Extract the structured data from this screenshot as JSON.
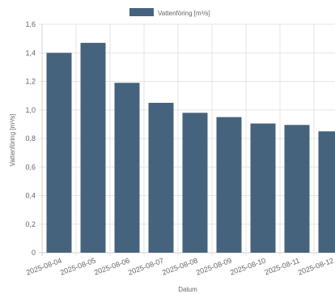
{
  "chart_data": {
    "type": "bar",
    "categories": [
      "2025-08-04",
      "2025-08-05",
      "2025-08-06",
      "2025-08-07",
      "2025-08-08",
      "2025-08-09",
      "2025-08-10",
      "2025-08-11",
      "2025-08-12"
    ],
    "series": [
      {
        "name": "Vattenföring [m³/s]",
        "values": [
          1.4,
          1.47,
          1.19,
          1.05,
          0.98,
          0.95,
          0.905,
          0.895,
          0.85
        ]
      }
    ],
    "xlabel": "Datum",
    "ylabel": "Vattenföring [m³/s]",
    "ylim": [
      0,
      1.6
    ],
    "yticks": [
      "0",
      "0,2",
      "0,4",
      "0,6",
      "0,8",
      "1,0",
      "1,2",
      "1,4",
      "1,6"
    ],
    "grid": true,
    "legend": "top-center",
    "color": "#46637d"
  }
}
